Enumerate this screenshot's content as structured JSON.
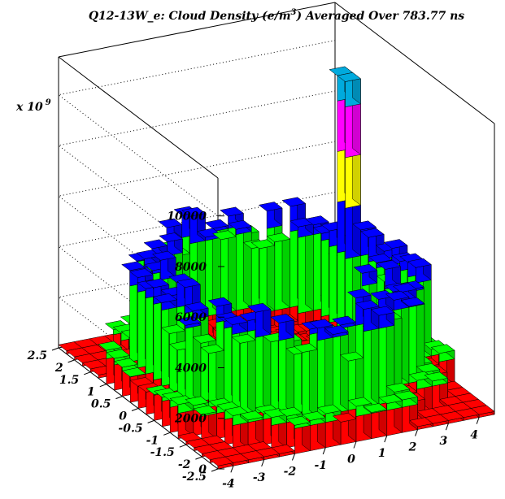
{
  "chart_data": {
    "type": "lego3d",
    "title_main": "Q12-13W_e: Cloud Density (e/m",
    "title_sup": "3",
    "title_rest": ") Averaged Over 783.77 ns",
    "z_multiplier_base": "x 10",
    "z_multiplier_exp": "9",
    "z_ticks": [
      "0",
      "2000",
      "4000",
      "6000",
      "8000",
      "10000"
    ],
    "z_range": [
      0,
      11500
    ],
    "x_ticks": [
      "-4",
      "-3",
      "-2",
      "-1",
      "0",
      "1",
      "2",
      "3",
      "4"
    ],
    "y_ticks": [
      "-2.5",
      "-2",
      "-1.5",
      "-1",
      "-0.5",
      "0",
      "0.5",
      "1",
      "1.5",
      "2",
      "2.5"
    ],
    "x_range": [
      -4.5,
      4.5
    ],
    "y_range": [
      -2.5,
      2.5
    ],
    "grid": true,
    "color_levels": [
      {
        "max": 1000,
        "color": "#ff0000"
      },
      {
        "max": 4000,
        "color": "#00ff00"
      },
      {
        "max": 6000,
        "color": "#0000ff"
      },
      {
        "max": 8000,
        "color": "#ffff00"
      },
      {
        "max": 10000,
        "color": "#ff00ff"
      },
      {
        "max": 12000,
        "color": "#00aadd"
      }
    ],
    "notable_peaks": [
      {
        "x": 2.6,
        "y": 0.3,
        "value": 11500
      },
      {
        "x": 2.6,
        "y": 0.5,
        "value": 11000
      },
      {
        "x": 2.4,
        "y": -0.6,
        "value": 4500
      }
    ]
  }
}
